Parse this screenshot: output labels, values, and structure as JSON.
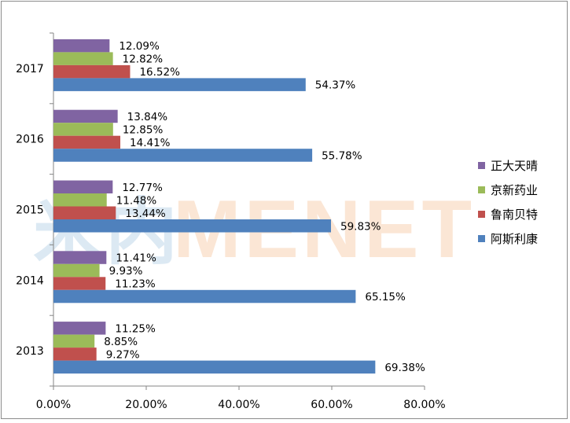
{
  "chart_data": {
    "type": "bar",
    "orientation": "horizontal",
    "categories": [
      "2017",
      "2016",
      "2015",
      "2014",
      "2013"
    ],
    "series": [
      {
        "name": "正大天晴",
        "color": "#8064a2",
        "values": [
          12.09,
          13.84,
          12.77,
          11.41,
          11.25
        ],
        "labels": [
          "12.09%",
          "13.84%",
          "12.77%",
          "11.41%",
          "11.25%"
        ]
      },
      {
        "name": "京新药业",
        "color": "#9bbb59",
        "values": [
          12.82,
          12.85,
          11.48,
          9.93,
          8.85
        ],
        "labels": [
          "12.82%",
          "12.85%",
          "11.48%",
          "9.93%",
          "8.85%"
        ]
      },
      {
        "name": "鲁南贝特",
        "color": "#c0504d",
        "values": [
          16.52,
          14.41,
          13.44,
          11.23,
          9.27
        ],
        "labels": [
          "16.52%",
          "14.41%",
          "13.44%",
          "11.23%",
          "9.27%"
        ]
      },
      {
        "name": "阿斯利康",
        "color": "#4f81bd",
        "values": [
          54.37,
          55.78,
          59.83,
          65.15,
          69.38
        ],
        "labels": [
          "54.37%",
          "55.78%",
          "59.83%",
          "65.15%",
          "69.38%"
        ]
      }
    ],
    "xlim": [
      0,
      80
    ],
    "xticks": [
      0,
      20,
      40,
      60,
      80
    ],
    "xtick_labels": [
      "0.00%",
      "20.00%",
      "40.00%",
      "60.00%",
      "80.00%"
    ],
    "grid": false,
    "legend_position": "right",
    "title": "",
    "xlabel": "",
    "ylabel": ""
  },
  "watermark": {
    "text": "MENET",
    "prefix": "米内"
  }
}
